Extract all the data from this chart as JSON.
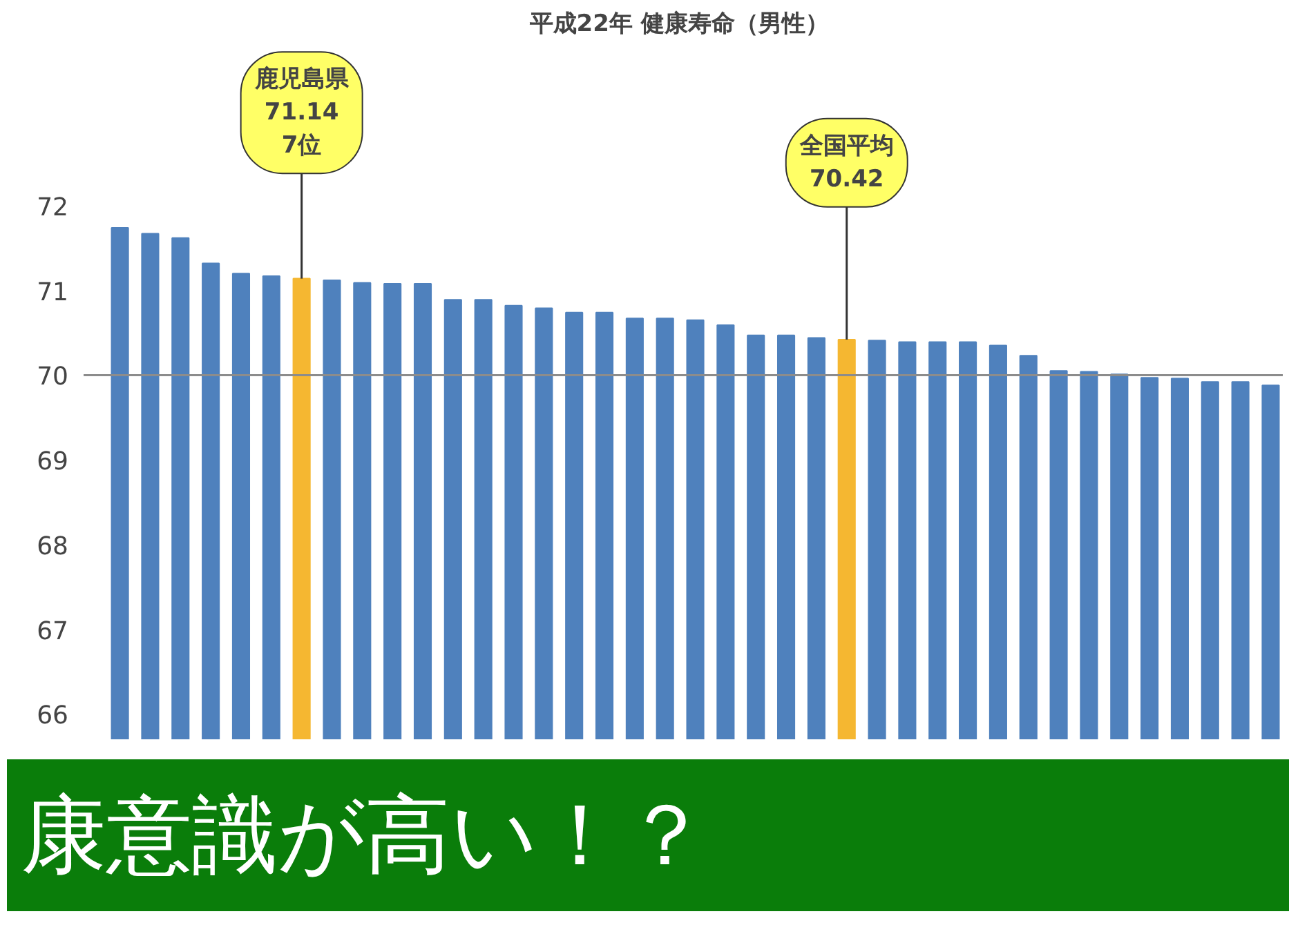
{
  "chart_data": {
    "type": "bar",
    "title": "平成22年  健康寿命（男性）",
    "categories": [
      null,
      null,
      null,
      null,
      null,
      null,
      null,
      null,
      null,
      null,
      null,
      null,
      null,
      null,
      null,
      null,
      null,
      null,
      null,
      null,
      null,
      null,
      null,
      null,
      null,
      null,
      null,
      null,
      null,
      null,
      null,
      null,
      null,
      null,
      null,
      null,
      null,
      null,
      null
    ],
    "values": [
      71.74,
      71.67,
      71.62,
      71.32,
      71.2,
      71.17,
      71.14,
      71.12,
      71.09,
      71.08,
      71.08,
      70.89,
      70.89,
      70.82,
      70.79,
      70.74,
      70.74,
      70.67,
      70.67,
      70.65,
      70.59,
      70.47,
      70.47,
      70.44,
      70.42,
      70.41,
      70.39,
      70.39,
      70.39,
      70.35,
      70.23,
      70.05,
      70.04,
      70.01,
      69.97,
      69.96,
      69.92,
      69.92,
      69.88
    ],
    "colors": [
      "#4f81bd",
      "#4f81bd",
      "#4f81bd",
      "#4f81bd",
      "#4f81bd",
      "#4f81bd",
      "#f5b731",
      "#4f81bd",
      "#4f81bd",
      "#4f81bd",
      "#4f81bd",
      "#4f81bd",
      "#4f81bd",
      "#4f81bd",
      "#4f81bd",
      "#4f81bd",
      "#4f81bd",
      "#4f81bd",
      "#4f81bd",
      "#4f81bd",
      "#4f81bd",
      "#4f81bd",
      "#4f81bd",
      "#4f81bd",
      "#f5b731",
      "#4f81bd",
      "#4f81bd",
      "#4f81bd",
      "#4f81bd",
      "#4f81bd",
      "#4f81bd",
      "#4f81bd",
      "#4f81bd",
      "#4f81bd",
      "#4f81bd",
      "#4f81bd",
      "#4f81bd",
      "#4f81bd",
      "#4f81bd"
    ],
    "ylim": [
      65.7,
      73.9
    ],
    "yticks": [
      66,
      67,
      68,
      69,
      70,
      71,
      72
    ],
    "ref_lines": [
      {
        "axis": "y",
        "value": 70,
        "color": "#8c8c8c"
      }
    ],
    "annotations": [
      {
        "text": "鹿児島県\n71.14\n7位",
        "y": 71.14
      },
      {
        "text": "全国平均\n70.42",
        "y": 70.42
      },
      "康意識が高い！？"
    ],
    "grid": false
  }
}
